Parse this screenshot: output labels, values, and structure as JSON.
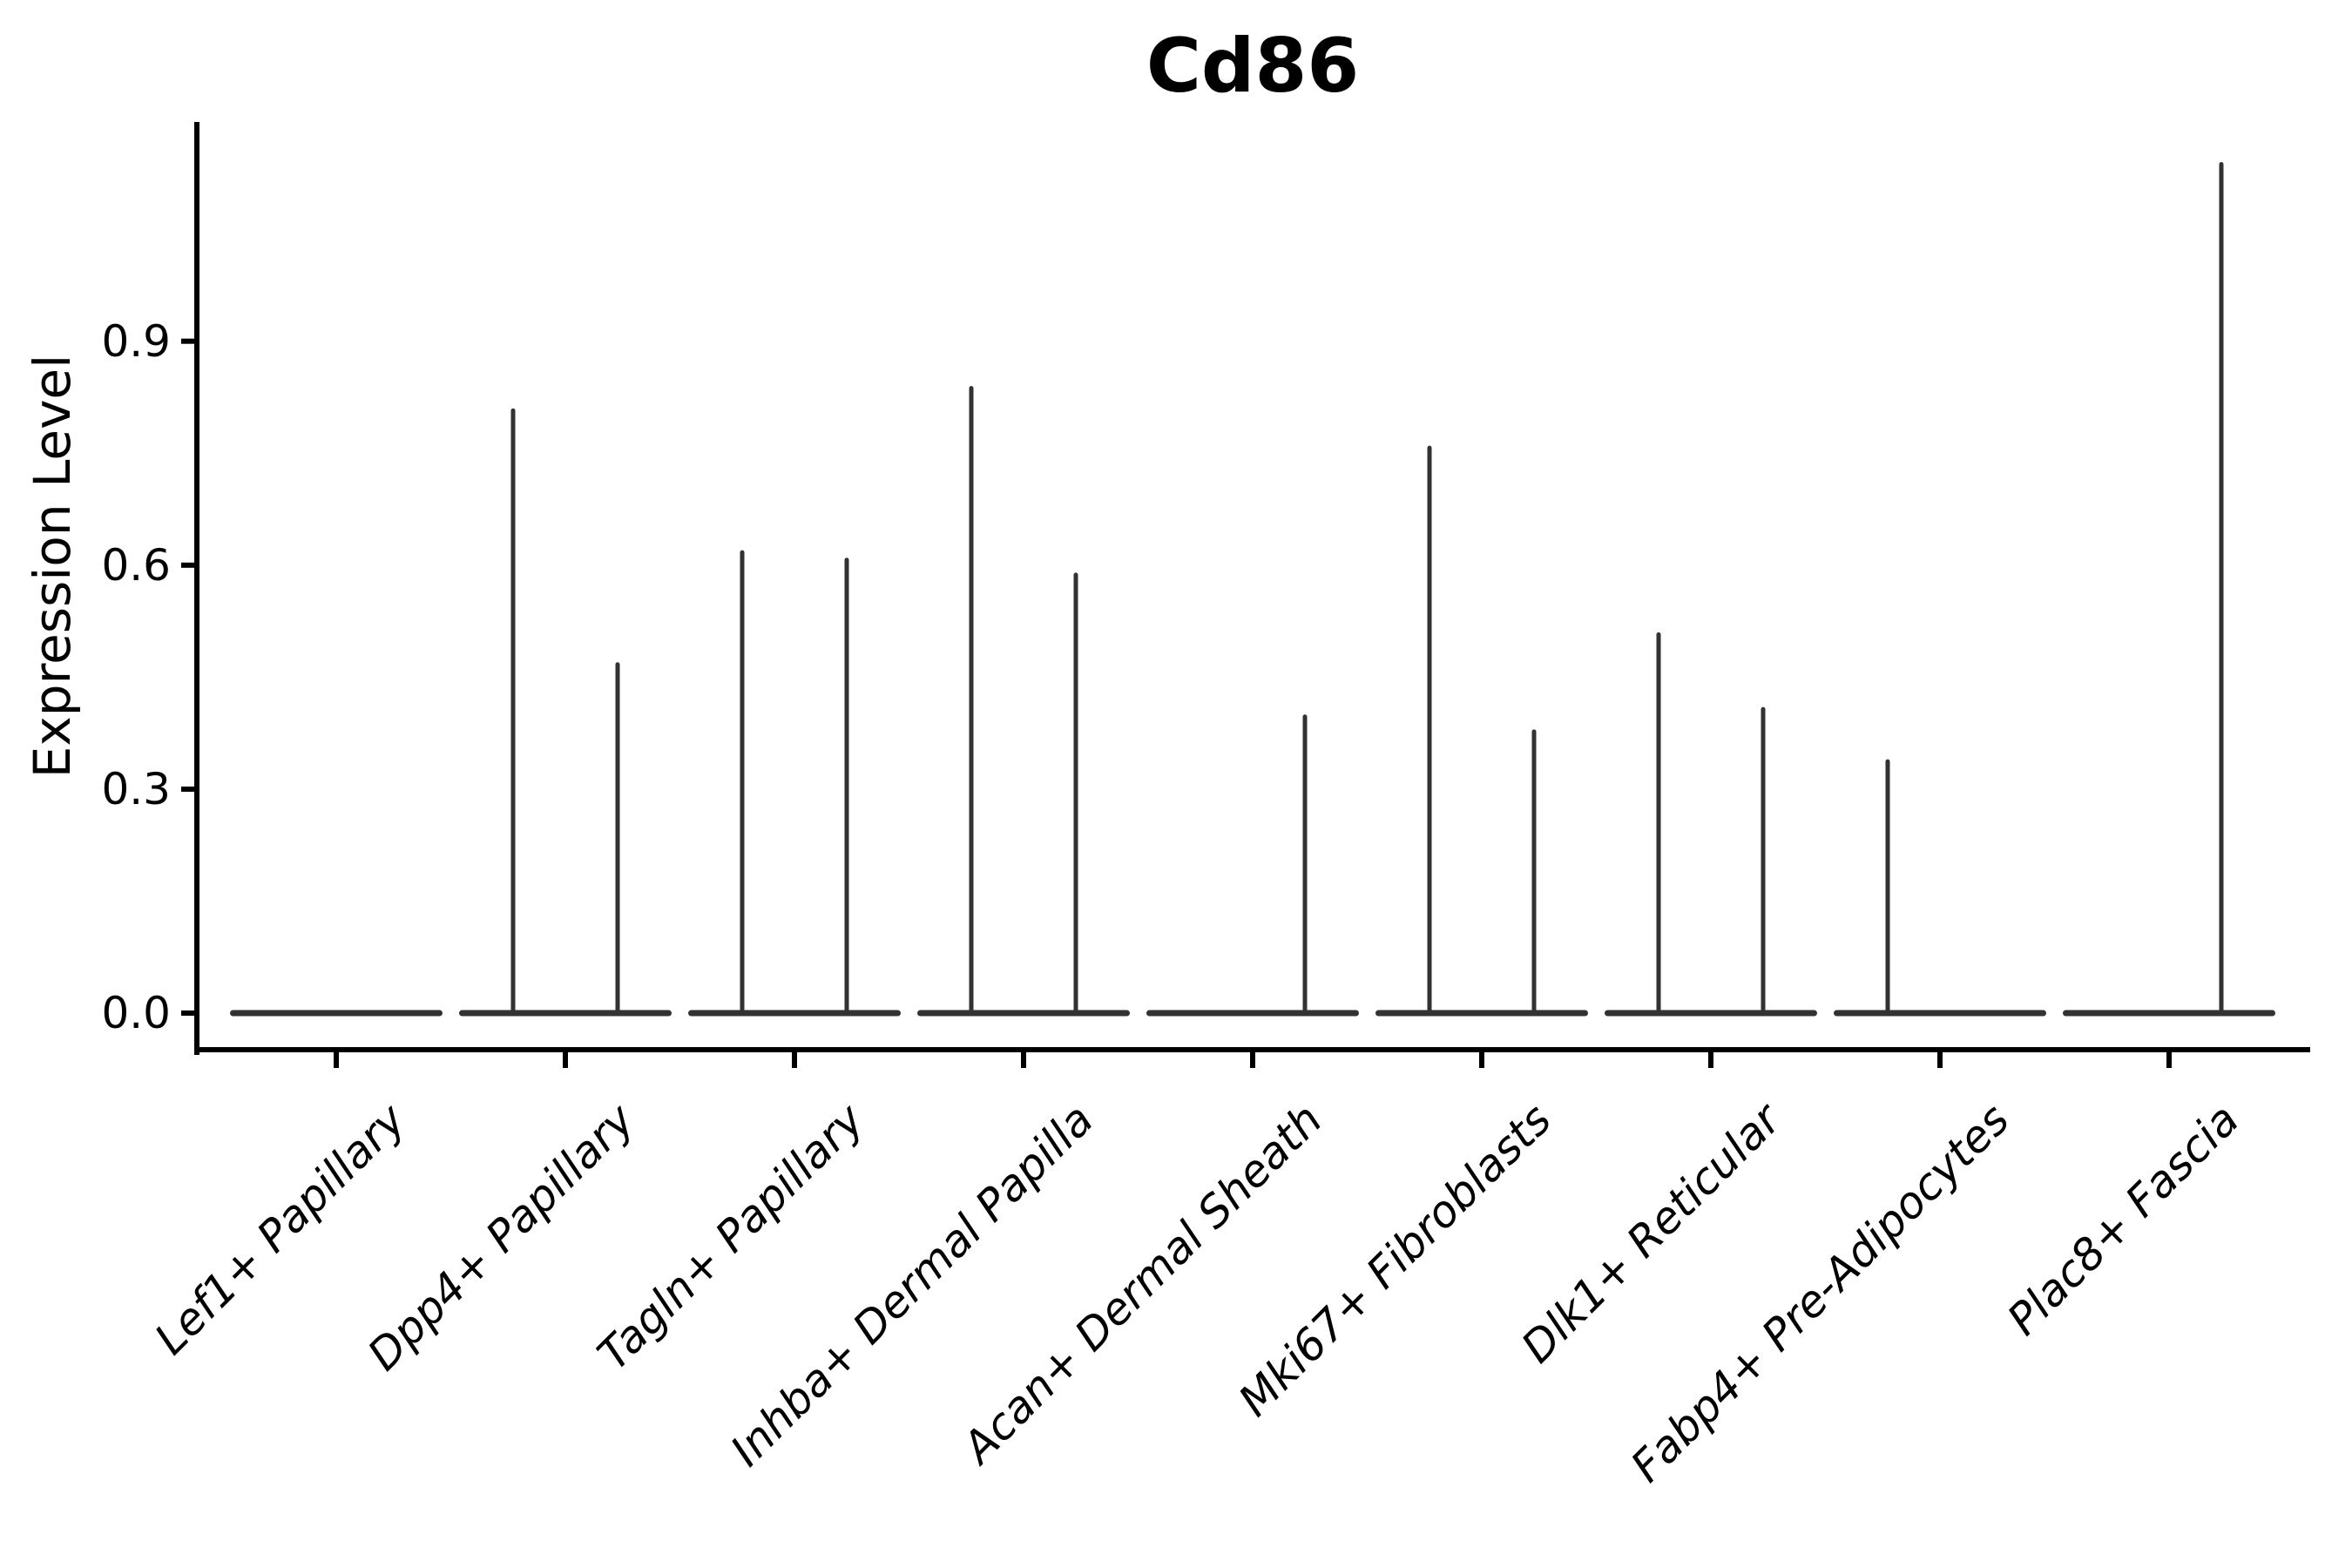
{
  "figure": {
    "title": "Cd86",
    "ylabel": "Expression Level"
  },
  "chart_data": {
    "type": "violin",
    "title": "Cd86",
    "xlabel": "",
    "ylabel": "Expression Level",
    "categories": [
      "Lef1+ Papillary",
      "Dpp4+ Papillary",
      "Tagln+ Papillary",
      "Inhba+ Dermal Papilla",
      "Acan+ Dermal Sheath",
      "Mki67+ Fibroblasts",
      "Dlk1+ Reticular",
      "Fabp4+ Pre-Adipocytes",
      "Plac8+ Fascia"
    ],
    "yticks": [
      0.0,
      0.3,
      0.6,
      0.9
    ],
    "ytick_labels": [
      "0.0",
      "0.3",
      "0.6",
      "0.9"
    ],
    "ylim": [
      0,
      1.19
    ],
    "grid": false,
    "legend": "none",
    "baseline_value": 0.0,
    "series": [
      {
        "name": "left-violin-spike-max",
        "values": [
          null,
          0.81,
          0.62,
          0.84,
          null,
          0.76,
          0.51,
          0.34,
          null
        ]
      },
      {
        "name": "right-violin-spike-max",
        "values": [
          null,
          0.47,
          0.61,
          0.59,
          0.4,
          0.38,
          0.41,
          null,
          1.14
        ]
      }
    ],
    "colors": {
      "violin": "#323232",
      "axis": "#000000",
      "text": "#000000",
      "background": "#ffffff"
    }
  }
}
